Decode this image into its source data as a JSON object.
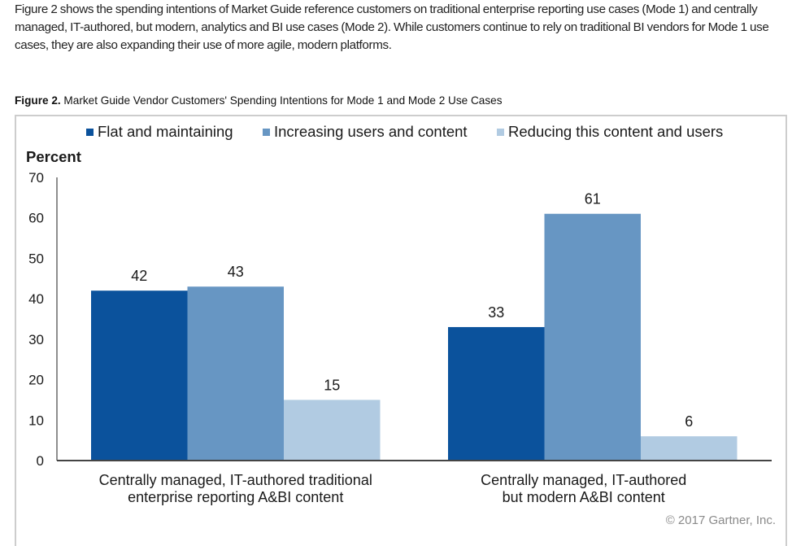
{
  "intro_text": "Figure 2 shows the spending intentions of Market Guide reference customers on traditional enterprise reporting use cases (Mode 1) and centrally managed, IT-authored, but modern, analytics and BI use cases (Mode 2). While customers continue to rely on traditional BI vendors for Mode 1 use cases, they are also expanding their use of more agile, modern platforms.",
  "figure": {
    "caption_label": "Figure 2.",
    "caption_text": " Market Guide Vendor Customers' Spending Intentions for Mode 1 and Mode 2 Use Cases",
    "copyright": "© 2017 Gartner, Inc."
  },
  "chart_data": {
    "type": "bar",
    "title": "Market Guide Vendor Customers' Spending Intentions for Mode 1 and Mode 2 Use Cases",
    "xlabel": "",
    "ylabel": "Percent",
    "ylim": [
      0,
      70
    ],
    "yticks": [
      0,
      10,
      20,
      30,
      40,
      50,
      60,
      70
    ],
    "grid": false,
    "legend_position": "top",
    "categories": [
      [
        "Centrally managed, IT-authored traditional",
        "enterprise reporting A&BI content"
      ],
      [
        "Centrally managed, IT-authored",
        "but modern A&BI content"
      ]
    ],
    "series": [
      {
        "name": "Flat and maintaining",
        "color": "#0b529c",
        "values": [
          42,
          33
        ]
      },
      {
        "name": "Increasing users and content",
        "color": "#6796c3",
        "values": [
          43,
          61
        ]
      },
      {
        "name": "Reducing this content and users",
        "color": "#b1cbe2",
        "values": [
          15,
          6
        ]
      }
    ]
  }
}
